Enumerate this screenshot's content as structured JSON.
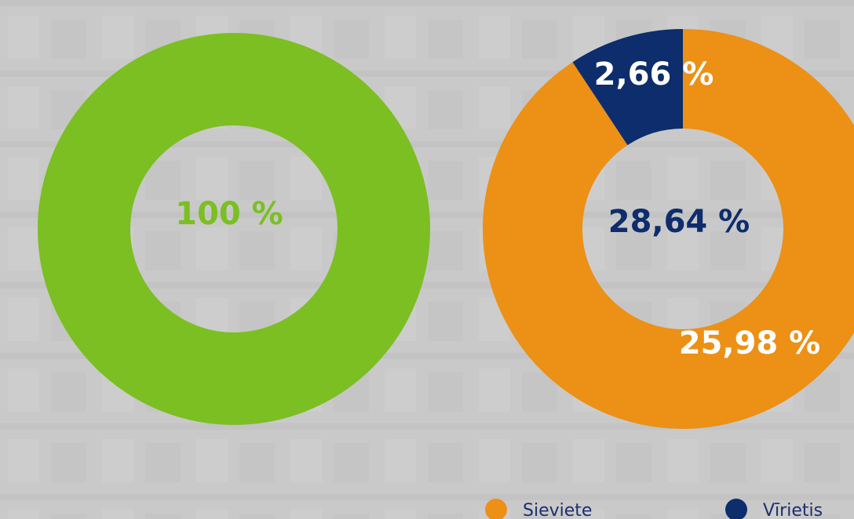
{
  "chart_data": [
    {
      "type": "donut",
      "values": [
        100
      ],
      "colors": [
        "#7bbf22"
      ],
      "center_label": "100 %",
      "center_color": "#7bbf22"
    },
    {
      "type": "donut",
      "categories": [
        "Sieviete",
        "Vīrietis"
      ],
      "values": [
        25.98,
        2.66
      ],
      "value_labels": [
        "25,98 %",
        "2,66 %"
      ],
      "colors": [
        "#ec9016",
        "#0d2d6c"
      ],
      "center_label": "28,64 %",
      "center_color": "#0d2d6c",
      "legend": "bottom"
    }
  ]
}
